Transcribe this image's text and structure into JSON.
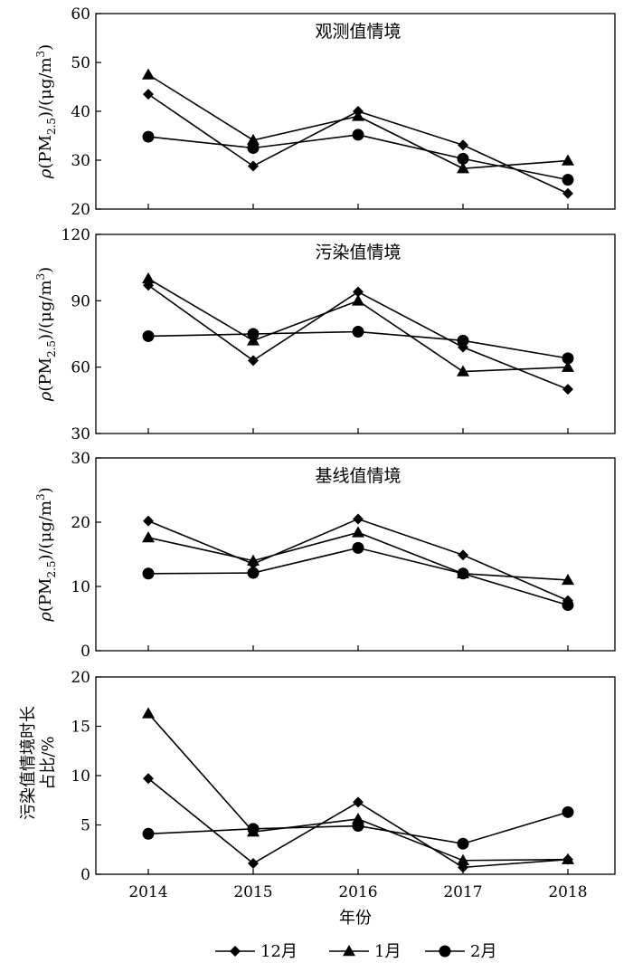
{
  "chart_data": [
    {
      "type": "line",
      "title": "观测值情境",
      "ylabel_parts": [
        "ρ(PM",
        "2.5",
        ")/(μg/m",
        "3",
        ")"
      ],
      "ylim": [
        20,
        60
      ],
      "yticks": [
        20,
        30,
        40,
        50,
        60
      ],
      "categories": [
        "2014",
        "2015",
        "2016",
        "2017",
        "2018"
      ],
      "series": [
        {
          "name": "12月",
          "values": [
            43.5,
            28.8,
            40.0,
            33.1,
            23.2
          ]
        },
        {
          "name": "1月",
          "values": [
            47.5,
            34.1,
            39.0,
            28.3,
            29.9
          ]
        },
        {
          "name": "2月",
          "values": [
            34.8,
            32.5,
            35.2,
            30.3,
            26.0
          ]
        }
      ]
    },
    {
      "type": "line",
      "title": "污染值情境",
      "ylabel_parts": [
        "ρ(PM",
        "2.5",
        ")/(μg/m",
        "3",
        ")"
      ],
      "ylim": [
        30,
        120
      ],
      "yticks": [
        30,
        60,
        90,
        120
      ],
      "categories": [
        "2014",
        "2015",
        "2016",
        "2017",
        "2018"
      ],
      "series": [
        {
          "name": "12月",
          "values": [
            97,
            63,
            94,
            69,
            50
          ]
        },
        {
          "name": "1月",
          "values": [
            100,
            72,
            90,
            58,
            60
          ]
        },
        {
          "name": "2月",
          "values": [
            74,
            75,
            76,
            72,
            64
          ]
        }
      ]
    },
    {
      "type": "line",
      "title": "基线值情境",
      "ylabel_parts": [
        "ρ(PM",
        "2.5",
        ")/(μg/m",
        "3",
        ")"
      ],
      "ylim": [
        0,
        30
      ],
      "yticks": [
        0,
        10,
        20,
        30
      ],
      "categories": [
        "2014",
        "2015",
        "2016",
        "2017",
        "2018"
      ],
      "series": [
        {
          "name": "12月",
          "values": [
            20.2,
            13.5,
            20.5,
            14.9,
            7.8
          ]
        },
        {
          "name": "1月",
          "values": [
            17.6,
            14.0,
            18.4,
            12.0,
            11.0
          ]
        },
        {
          "name": "2月",
          "values": [
            12.0,
            12.1,
            16.0,
            12.0,
            7.1
          ]
        }
      ]
    },
    {
      "type": "line",
      "title": "",
      "ylabel_lines": [
        "污染值情境时长",
        "占比/%"
      ],
      "ylim": [
        0,
        20
      ],
      "yticks": [
        0,
        5,
        10,
        15,
        20
      ],
      "categories": [
        "2014",
        "2015",
        "2016",
        "2017",
        "2018"
      ],
      "xlabel": "年份",
      "series": [
        {
          "name": "12月",
          "values": [
            9.7,
            1.1,
            7.3,
            0.7,
            1.5
          ]
        },
        {
          "name": "1月",
          "values": [
            16.3,
            4.3,
            5.6,
            1.4,
            1.5
          ]
        },
        {
          "name": "2月",
          "values": [
            4.1,
            4.6,
            4.9,
            3.1,
            6.3
          ]
        }
      ]
    }
  ],
  "legend": {
    "placement": "bottom",
    "items": [
      {
        "label": "12月",
        "marker": "diamond"
      },
      {
        "label": "1月",
        "marker": "triangle"
      },
      {
        "label": "2月",
        "marker": "circle"
      }
    ]
  },
  "colors": {
    "line": "#000000",
    "axis": "#000000",
    "background": "#ffffff"
  }
}
